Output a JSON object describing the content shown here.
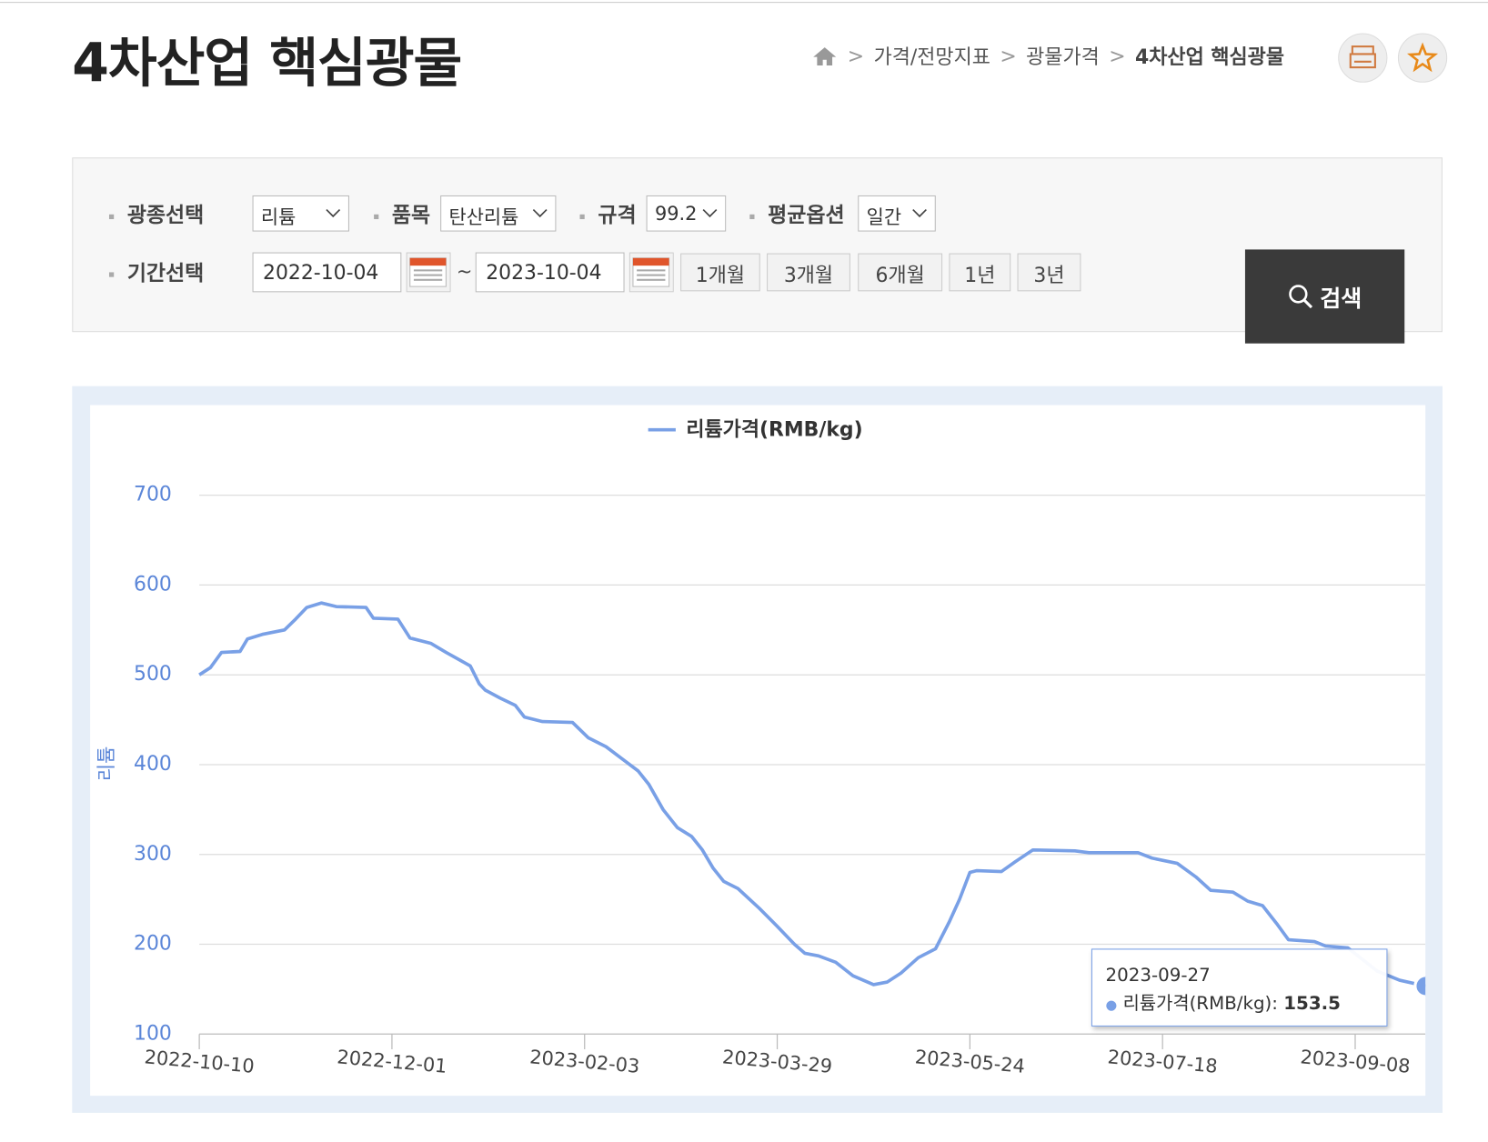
{
  "header": {
    "title": "4차산업 핵심광물",
    "breadcrumb": [
      "가격/전망지표",
      "광물가격",
      "4차산업 핵심광물"
    ]
  },
  "filters": {
    "fields": [
      {
        "label": "광종선택",
        "value": "리튬"
      },
      {
        "label": "품목",
        "value": "탄산리튬"
      },
      {
        "label": "규격",
        "value": "99.2"
      },
      {
        "label": "평균옵션",
        "value": "일간"
      }
    ],
    "period": {
      "label": "기간선택",
      "start": "2022-10-04",
      "separator": "~",
      "end": "2023-10-04"
    },
    "quick_ranges": [
      "1개월",
      "3개월",
      "6개월",
      "1년",
      "3년"
    ],
    "search": "검색"
  },
  "chart_data": {
    "type": "line",
    "y_label": "리튬",
    "xlim": [
      "2022-10-10",
      "2023-09-27"
    ],
    "xticks": [
      "2022-10-10",
      "2022-12-01",
      "2023-02-03",
      "2023-03-29",
      "2023-05-24",
      "2023-07-18",
      "2023-09-08"
    ],
    "x": [
      "2022-10-10",
      "2022-10-13",
      "2022-10-16",
      "2022-10-21",
      "2022-10-23",
      "2022-10-27",
      "2022-11-02",
      "2022-11-05",
      "2022-11-08",
      "2022-11-12",
      "2022-11-16",
      "2022-11-24",
      "2022-11-26",
      "2022-12-03",
      "2022-12-07",
      "2022-12-14",
      "2022-12-19",
      "2022-12-27",
      "2022-12-30",
      "2023-01-01",
      "2023-01-06",
      "2023-01-11",
      "2023-01-14",
      "2023-01-20",
      "2023-01-30",
      "2023-02-04",
      "2023-02-09",
      "2023-02-14",
      "2023-02-18",
      "2023-02-21",
      "2023-02-25",
      "2023-03-01",
      "2023-03-05",
      "2023-03-08",
      "2023-03-11",
      "2023-03-14",
      "2023-03-18",
      "2023-03-24",
      "2023-03-29",
      "2023-04-03",
      "2023-04-06",
      "2023-04-10",
      "2023-04-15",
      "2023-04-20",
      "2023-04-26",
      "2023-04-30",
      "2023-05-04",
      "2023-05-09",
      "2023-05-14",
      "2023-05-18",
      "2023-05-21",
      "2023-05-24",
      "2023-05-26",
      "2023-06-02",
      "2023-06-06",
      "2023-06-11",
      "2023-06-23",
      "2023-06-27",
      "2023-07-11",
      "2023-07-15",
      "2023-07-22",
      "2023-07-27",
      "2023-07-31",
      "2023-08-06",
      "2023-08-10",
      "2023-08-14",
      "2023-08-18",
      "2023-08-21",
      "2023-08-28",
      "2023-08-31",
      "2023-09-06",
      "2023-09-14",
      "2023-09-20",
      "2023-09-27"
    ],
    "series": [
      {
        "name": "리튬가격(RMB/kg)",
        "color": "#79a0e6",
        "values": [
          500,
          508,
          525,
          526,
          540,
          545,
          550,
          562,
          575,
          580,
          576,
          575,
          563,
          562,
          541,
          535,
          525,
          510,
          490,
          483,
          474,
          466,
          453,
          448,
          447,
          430,
          420,
          405,
          393,
          378,
          350,
          330,
          320,
          305,
          285,
          270,
          262,
          240,
          220,
          200,
          190,
          187,
          180,
          165,
          155,
          158,
          168,
          185,
          195,
          225,
          250,
          280,
          282,
          281,
          292,
          305,
          304,
          302,
          302,
          296,
          290,
          275,
          260,
          258,
          248,
          243,
          222,
          205,
          203,
          198,
          196,
          170,
          160,
          153.5
        ]
      }
    ],
    "ylim": [
      100,
      700
    ],
    "yticks": [
      100,
      200,
      300,
      400,
      500,
      600,
      700
    ],
    "grid": true,
    "legend": "top",
    "tooltip": {
      "date": "2023-09-27",
      "label": "리튬가격(RMB/kg):",
      "value": 153.5
    }
  }
}
